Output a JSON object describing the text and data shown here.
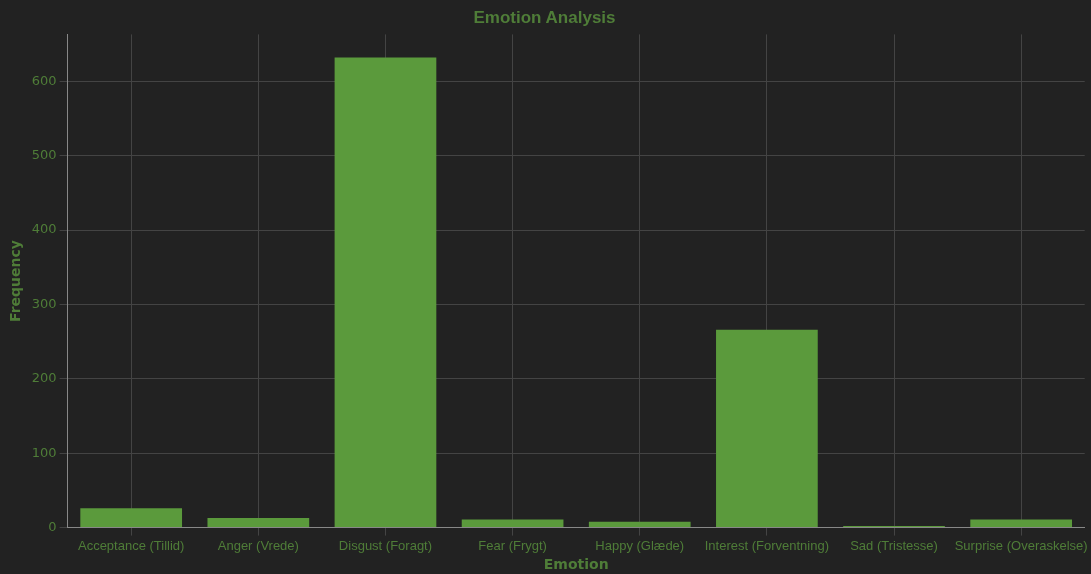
{
  "chart_data": {
    "type": "bar",
    "title": "Emotion Analysis",
    "xlabel": "Emotion",
    "ylabel": "Frequency",
    "categories": [
      "Acceptance (Tillid)",
      "Anger (Vrede)",
      "Disgust (Foragt)",
      "Fear (Frygt)",
      "Happy (Glæde)",
      "Interest (Forventning)",
      "Sad (Tristesse)",
      "Surprise (Overaskelse)"
    ],
    "values": [
      26,
      13,
      632,
      11,
      8,
      266,
      2,
      11
    ],
    "color": "#5b9a3c",
    "ylim": [
      0,
      663
    ],
    "yticks": [
      0,
      100,
      200,
      300,
      400,
      500,
      600
    ],
    "grid": true,
    "legend": false
  }
}
